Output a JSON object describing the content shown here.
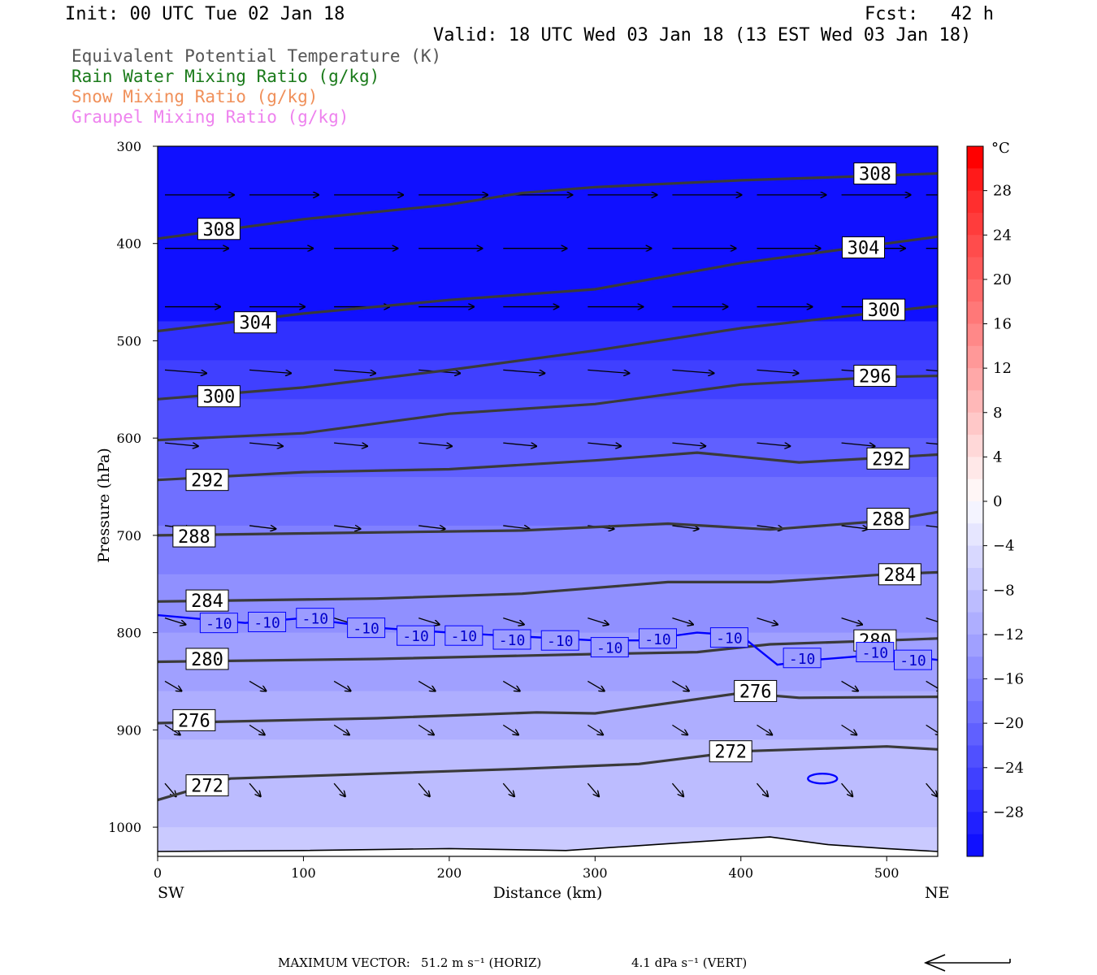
{
  "header": {
    "init": "Init: 00 UTC Tue 02 Jan 18",
    "fcst": "Fcst:   42 h",
    "valid": "Valid: 18 UTC Wed 03 Jan 18 (13 EST Wed 03 Jan 18)"
  },
  "legend": [
    {
      "label": "Equivalent Potential Temperature (K)",
      "color": "#555555"
    },
    {
      "label": "Rain Water Mixing Ratio (g/kg)",
      "color": "#1a7a1a"
    },
    {
      "label": "Snow Mixing Ratio (g/kg)",
      "color": "#f0905a"
    },
    {
      "label": "Graupel Mixing Ratio (g/kg)",
      "color": "#ee82ee"
    }
  ],
  "chart_data": {
    "type": "contour-cross-section",
    "xlabel": "Distance (km)",
    "ylabel": "Pressure (hPa)",
    "xlim": [
      0,
      535
    ],
    "ylim": [
      300,
      1030
    ],
    "x_ticks": [
      "0",
      "100",
      "200",
      "300",
      "400",
      "500"
    ],
    "y_ticks": [
      "300",
      "400",
      "500",
      "600",
      "700",
      "800",
      "900",
      "1000"
    ],
    "left_end_label": "SW",
    "right_end_label": "NE",
    "colorbar": {
      "unit": "°C",
      "labels": [
        "28",
        "24",
        "20",
        "16",
        "12",
        "8",
        "4",
        "0",
        "-4",
        "-8",
        "-12",
        "-16",
        "-20",
        "-24",
        "-28"
      ],
      "bins": [
        {
          "min": 30,
          "max": 32,
          "color": "#ff0000"
        },
        {
          "min": 28,
          "max": 30,
          "color": "#ff1a1a"
        },
        {
          "min": 26,
          "max": 28,
          "color": "#ff2e2e"
        },
        {
          "min": 24,
          "max": 26,
          "color": "#ff3c3c"
        },
        {
          "min": 22,
          "max": 24,
          "color": "#ff4c4c"
        },
        {
          "min": 20,
          "max": 22,
          "color": "#ff5a5a"
        },
        {
          "min": 18,
          "max": 20,
          "color": "#ff6a6a"
        },
        {
          "min": 16,
          "max": 18,
          "color": "#ff7878"
        },
        {
          "min": 14,
          "max": 16,
          "color": "#ff8888"
        },
        {
          "min": 12,
          "max": 14,
          "color": "#ff9898"
        },
        {
          "min": 10,
          "max": 12,
          "color": "#ffa8a8"
        },
        {
          "min": 8,
          "max": 10,
          "color": "#ffb8b8"
        },
        {
          "min": 6,
          "max": 8,
          "color": "#ffc8c8"
        },
        {
          "min": 4,
          "max": 6,
          "color": "#ffd8d8"
        },
        {
          "min": 2,
          "max": 4,
          "color": "#ffe8e8"
        },
        {
          "min": 0,
          "max": 2,
          "color": "#fff6f6"
        },
        {
          "min": -2,
          "max": 0,
          "color": "#f4f4ff"
        },
        {
          "min": -4,
          "max": -2,
          "color": "#e6e6ff"
        },
        {
          "min": -6,
          "max": -4,
          "color": "#d8d8ff"
        },
        {
          "min": -8,
          "max": -6,
          "color": "#cacaff"
        },
        {
          "min": -10,
          "max": -8,
          "color": "#bcbcff"
        },
        {
          "min": -12,
          "max": -10,
          "color": "#aeaeff"
        },
        {
          "min": -14,
          "max": -12,
          "color": "#a0a0ff"
        },
        {
          "min": -16,
          "max": -14,
          "color": "#9090ff"
        },
        {
          "min": -18,
          "max": -16,
          "color": "#8080ff"
        },
        {
          "min": -20,
          "max": -18,
          "color": "#7070ff"
        },
        {
          "min": -22,
          "max": -20,
          "color": "#6060ff"
        },
        {
          "min": -24,
          "max": -22,
          "color": "#5050ff"
        },
        {
          "min": -26,
          "max": -24,
          "color": "#4040ff"
        },
        {
          "min": -28,
          "max": -26,
          "color": "#3030ff"
        },
        {
          "min": -30,
          "max": -28,
          "color": "#2020ff"
        },
        {
          "min": -32,
          "max": -30,
          "color": "#1010ff"
        }
      ]
    },
    "temperature_bands": [
      {
        "pressure_top": 300,
        "temp_c": -31
      },
      {
        "pressure_top": 480,
        "temp_c": -27
      },
      {
        "pressure_top": 520,
        "temp_c": -25
      },
      {
        "pressure_top": 560,
        "temp_c": -23
      },
      {
        "pressure_top": 600,
        "temp_c": -21
      },
      {
        "pressure_top": 640,
        "temp_c": -19
      },
      {
        "pressure_top": 690,
        "temp_c": -17
      },
      {
        "pressure_top": 740,
        "temp_c": -15
      },
      {
        "pressure_top": 800,
        "temp_c": -13
      },
      {
        "pressure_top": 860,
        "temp_c": -11
      },
      {
        "pressure_top": 910,
        "temp_c": -9
      },
      {
        "pressure_top": 1000,
        "temp_c": -7
      }
    ],
    "theta_e_contours": [
      {
        "label": "308",
        "points": [
          [
            0,
            395
          ],
          [
            100,
            375
          ],
          [
            200,
            360
          ],
          [
            250,
            348
          ],
          [
            300,
            342
          ],
          [
            400,
            335
          ],
          [
            500,
            330
          ],
          [
            535,
            328
          ]
        ],
        "label_at": [
          [
            42,
            385
          ],
          [
            492,
            328
          ]
        ]
      },
      {
        "label": "304",
        "points": [
          [
            0,
            490
          ],
          [
            100,
            472
          ],
          [
            200,
            458
          ],
          [
            300,
            447
          ],
          [
            400,
            420
          ],
          [
            500,
            400
          ],
          [
            535,
            393
          ]
        ],
        "label_at": [
          [
            67,
            481
          ],
          [
            484,
            404
          ]
        ]
      },
      {
        "label": "300",
        "points": [
          [
            0,
            560
          ],
          [
            100,
            548
          ],
          [
            200,
            530
          ],
          [
            300,
            510
          ],
          [
            400,
            487
          ],
          [
            500,
            470
          ],
          [
            535,
            464
          ]
        ],
        "label_at": [
          [
            42,
            557
          ],
          [
            498,
            468
          ]
        ]
      },
      {
        "label": "296",
        "points": [
          [
            0,
            602
          ],
          [
            100,
            595
          ],
          [
            200,
            575
          ],
          [
            300,
            565
          ],
          [
            400,
            545
          ],
          [
            500,
            537
          ],
          [
            535,
            536
          ]
        ],
        "label_at": [
          [
            492,
            536
          ]
        ]
      },
      {
        "label": "292",
        "points": [
          [
            0,
            643
          ],
          [
            100,
            635
          ],
          [
            200,
            632
          ],
          [
            300,
            623
          ],
          [
            370,
            615
          ],
          [
            440,
            625
          ],
          [
            500,
            620
          ],
          [
            535,
            617
          ]
        ],
        "label_at": [
          [
            34,
            643
          ],
          [
            501,
            621
          ]
        ]
      },
      {
        "label": "288",
        "points": [
          [
            0,
            700
          ],
          [
            100,
            698
          ],
          [
            250,
            695
          ],
          [
            350,
            688
          ],
          [
            420,
            694
          ],
          [
            500,
            685
          ],
          [
            535,
            676
          ]
        ],
        "label_at": [
          [
            25,
            701
          ],
          [
            501,
            683
          ]
        ]
      },
      {
        "label": "284",
        "points": [
          [
            0,
            768
          ],
          [
            150,
            765
          ],
          [
            250,
            760
          ],
          [
            350,
            748
          ],
          [
            420,
            748
          ],
          [
            500,
            740
          ],
          [
            535,
            738
          ]
        ],
        "label_at": [
          [
            34,
            767
          ],
          [
            509,
            740
          ]
        ]
      },
      {
        "label": "280",
        "points": [
          [
            0,
            830
          ],
          [
            150,
            827
          ],
          [
            300,
            822
          ],
          [
            370,
            820
          ],
          [
            420,
            812
          ],
          [
            500,
            808
          ],
          [
            535,
            806
          ]
        ],
        "label_at": [
          [
            34,
            827
          ],
          [
            492,
            808
          ]
        ]
      },
      {
        "label": "276",
        "points": [
          [
            0,
            893
          ],
          [
            150,
            888
          ],
          [
            260,
            882
          ],
          [
            300,
            883
          ],
          [
            400,
            862
          ],
          [
            440,
            867
          ],
          [
            535,
            866
          ]
        ],
        "label_at": [
          [
            25,
            890
          ],
          [
            410,
            860
          ]
        ]
      },
      {
        "label": "272",
        "points": [
          [
            0,
            972
          ],
          [
            50,
            950
          ],
          [
            150,
            945
          ],
          [
            250,
            940
          ],
          [
            330,
            935
          ],
          [
            400,
            922
          ],
          [
            500,
            917
          ],
          [
            535,
            920
          ]
        ],
        "label_at": [
          [
            34,
            957
          ],
          [
            393,
            922
          ]
        ]
      }
    ],
    "isotherm_minus10": {
      "label": "-10",
      "points": [
        [
          0,
          782
        ],
        [
          60,
          790
        ],
        [
          100,
          785
        ],
        [
          150,
          795
        ],
        [
          200,
          800
        ],
        [
          300,
          808
        ],
        [
          330,
          808
        ],
        [
          370,
          800
        ],
        [
          400,
          803
        ],
        [
          425,
          833
        ],
        [
          450,
          828
        ],
        [
          500,
          822
        ],
        [
          535,
          828
        ]
      ],
      "label_at": [
        [
          42,
          790
        ],
        [
          75,
          789
        ],
        [
          108,
          785
        ],
        [
          143,
          795
        ],
        [
          177,
          803
        ],
        [
          210,
          803
        ],
        [
          243,
          807
        ],
        [
          276,
          808
        ],
        [
          310,
          815
        ],
        [
          343,
          806
        ],
        [
          392,
          805
        ],
        [
          442,
          826
        ],
        [
          492,
          820
        ],
        [
          518,
          828
        ]
      ],
      "closed_loop": {
        "center": [
          456,
          950
        ]
      }
    },
    "wind_rows": [
      {
        "pressure": 350,
        "u": 1.0,
        "w": 0.0
      },
      {
        "pressure": 405,
        "u": 0.92,
        "w": 0.0
      },
      {
        "pressure": 465,
        "u": 0.8,
        "w": 0.0
      },
      {
        "pressure": 530,
        "u": 0.6,
        "w": 0.01
      },
      {
        "pressure": 605,
        "u": 0.48,
        "w": 0.01
      },
      {
        "pressure": 690,
        "u": 0.38,
        "w": 0.01
      },
      {
        "pressure": 785,
        "u": 0.3,
        "w": 0.02
      },
      {
        "pressure": 850,
        "u": 0.24,
        "w": 0.03
      },
      {
        "pressure": 895,
        "u": 0.22,
        "w": 0.03
      },
      {
        "pressure": 955,
        "u": 0.16,
        "w": 0.04
      }
    ],
    "terrain_line": [
      [
        0,
        1025
      ],
      [
        100,
        1024
      ],
      [
        200,
        1022
      ],
      [
        280,
        1024
      ],
      [
        360,
        1016
      ],
      [
        420,
        1010
      ],
      [
        460,
        1018
      ],
      [
        500,
        1022
      ],
      [
        535,
        1025
      ]
    ]
  },
  "footer": {
    "max_vector_label": "MAXIMUM VECTOR:",
    "horiz": "51.2 m s⁻¹ (HORIZ)",
    "vert": "4.1 dPa s⁻¹ (VERT)"
  }
}
